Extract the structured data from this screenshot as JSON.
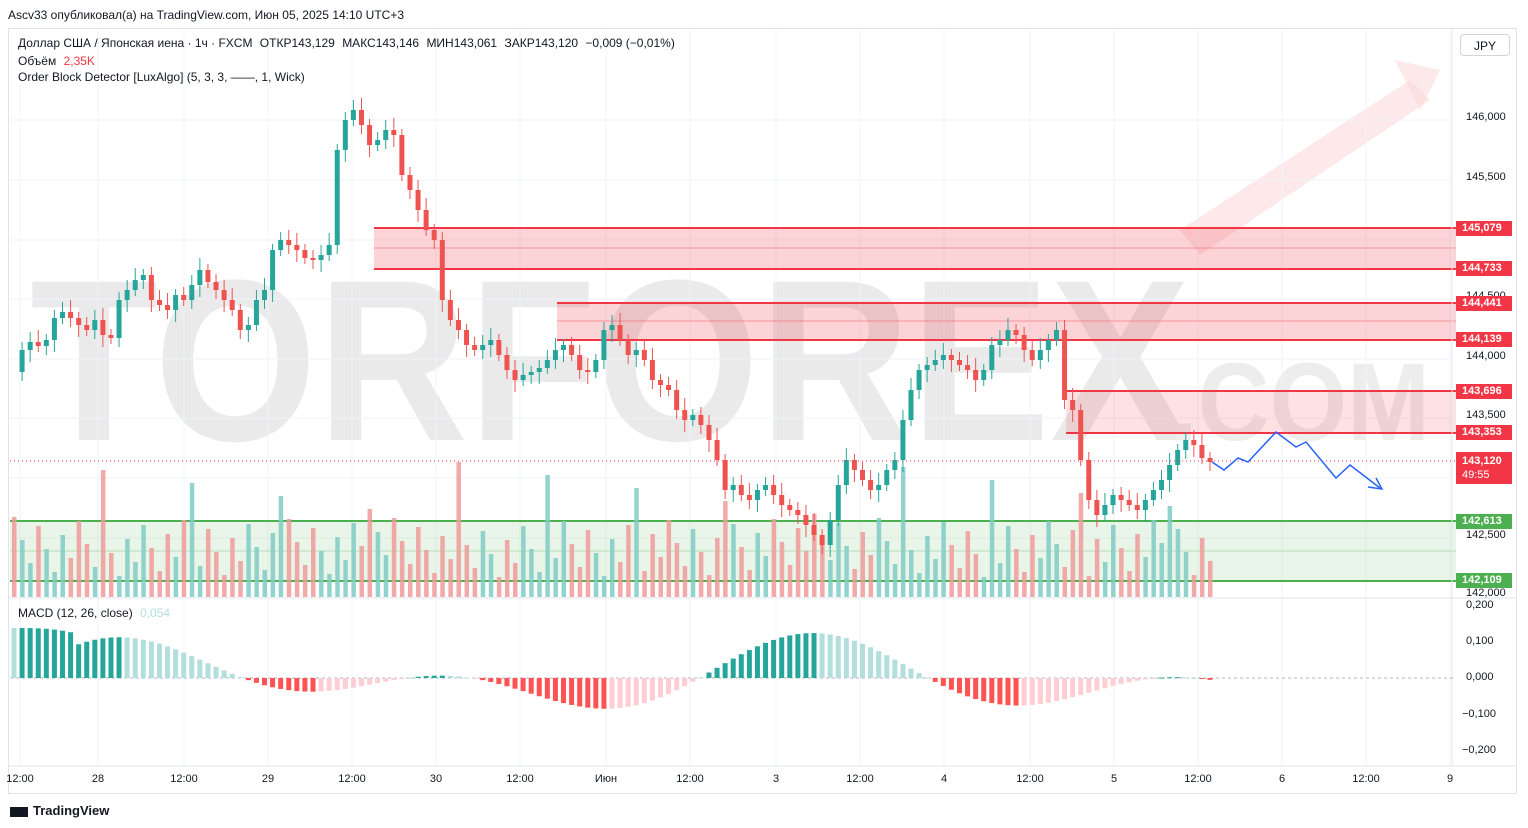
{
  "publisher_line": "Ascv33 опубликовал(а) на TradingView.com, Июн 05, 2025 14:10 UTC+3",
  "legend": {
    "symbol": "Доллар США / Японская иена · 1ч · FXCM",
    "open": "ОТКР143,129",
    "high": "МАКС143,146",
    "low": "МИН143,061",
    "close": "ЗАКР143,120",
    "change": "−0,009 (−0,01%)",
    "volume_label": "Объём",
    "volume_value": "2,35K",
    "indicator": "Order Block Detector [LuxAlgo] (5, 3, 3, ——, 1, Wick)"
  },
  "macd": {
    "label": "MACD (12, 26, close)",
    "value": "0,054"
  },
  "currency_button": "JPY",
  "watermark": {
    "text1": "TORFOREX",
    "text2": ".COM"
  },
  "price_axis": [
    "146,000",
    "145,500",
    "144,500",
    "144,000",
    "143,500",
    "142,500",
    "142,000"
  ],
  "macd_axis": [
    "0,200",
    "0,100",
    "0,000",
    "−0,100",
    "−0,200"
  ],
  "time_axis": [
    "12:00",
    "28",
    "12:00",
    "29",
    "12:00",
    "30",
    "12:00",
    "Июн",
    "12:00",
    "3",
    "12:00",
    "4",
    "12:00",
    "5",
    "12:00",
    "6",
    "12:00",
    "9"
  ],
  "order_block_levels": {
    "ob1_top": "145,079",
    "ob1_bottom": "144,733",
    "ob2_top": "144,441",
    "ob2_bottom": "144,139",
    "ob3_top": "143,696",
    "ob3_bottom": "143,353",
    "support_top": "142,613",
    "support_bottom": "142,109"
  },
  "last_price": {
    "value": "143,120",
    "countdown": "49:55"
  },
  "brand": "TradingView",
  "colors": {
    "up": "#26a69a",
    "down": "#ef5350",
    "bear_zone": "#f23645",
    "bull_zone": "#4caf50",
    "forecast": "#2962ff"
  }
}
